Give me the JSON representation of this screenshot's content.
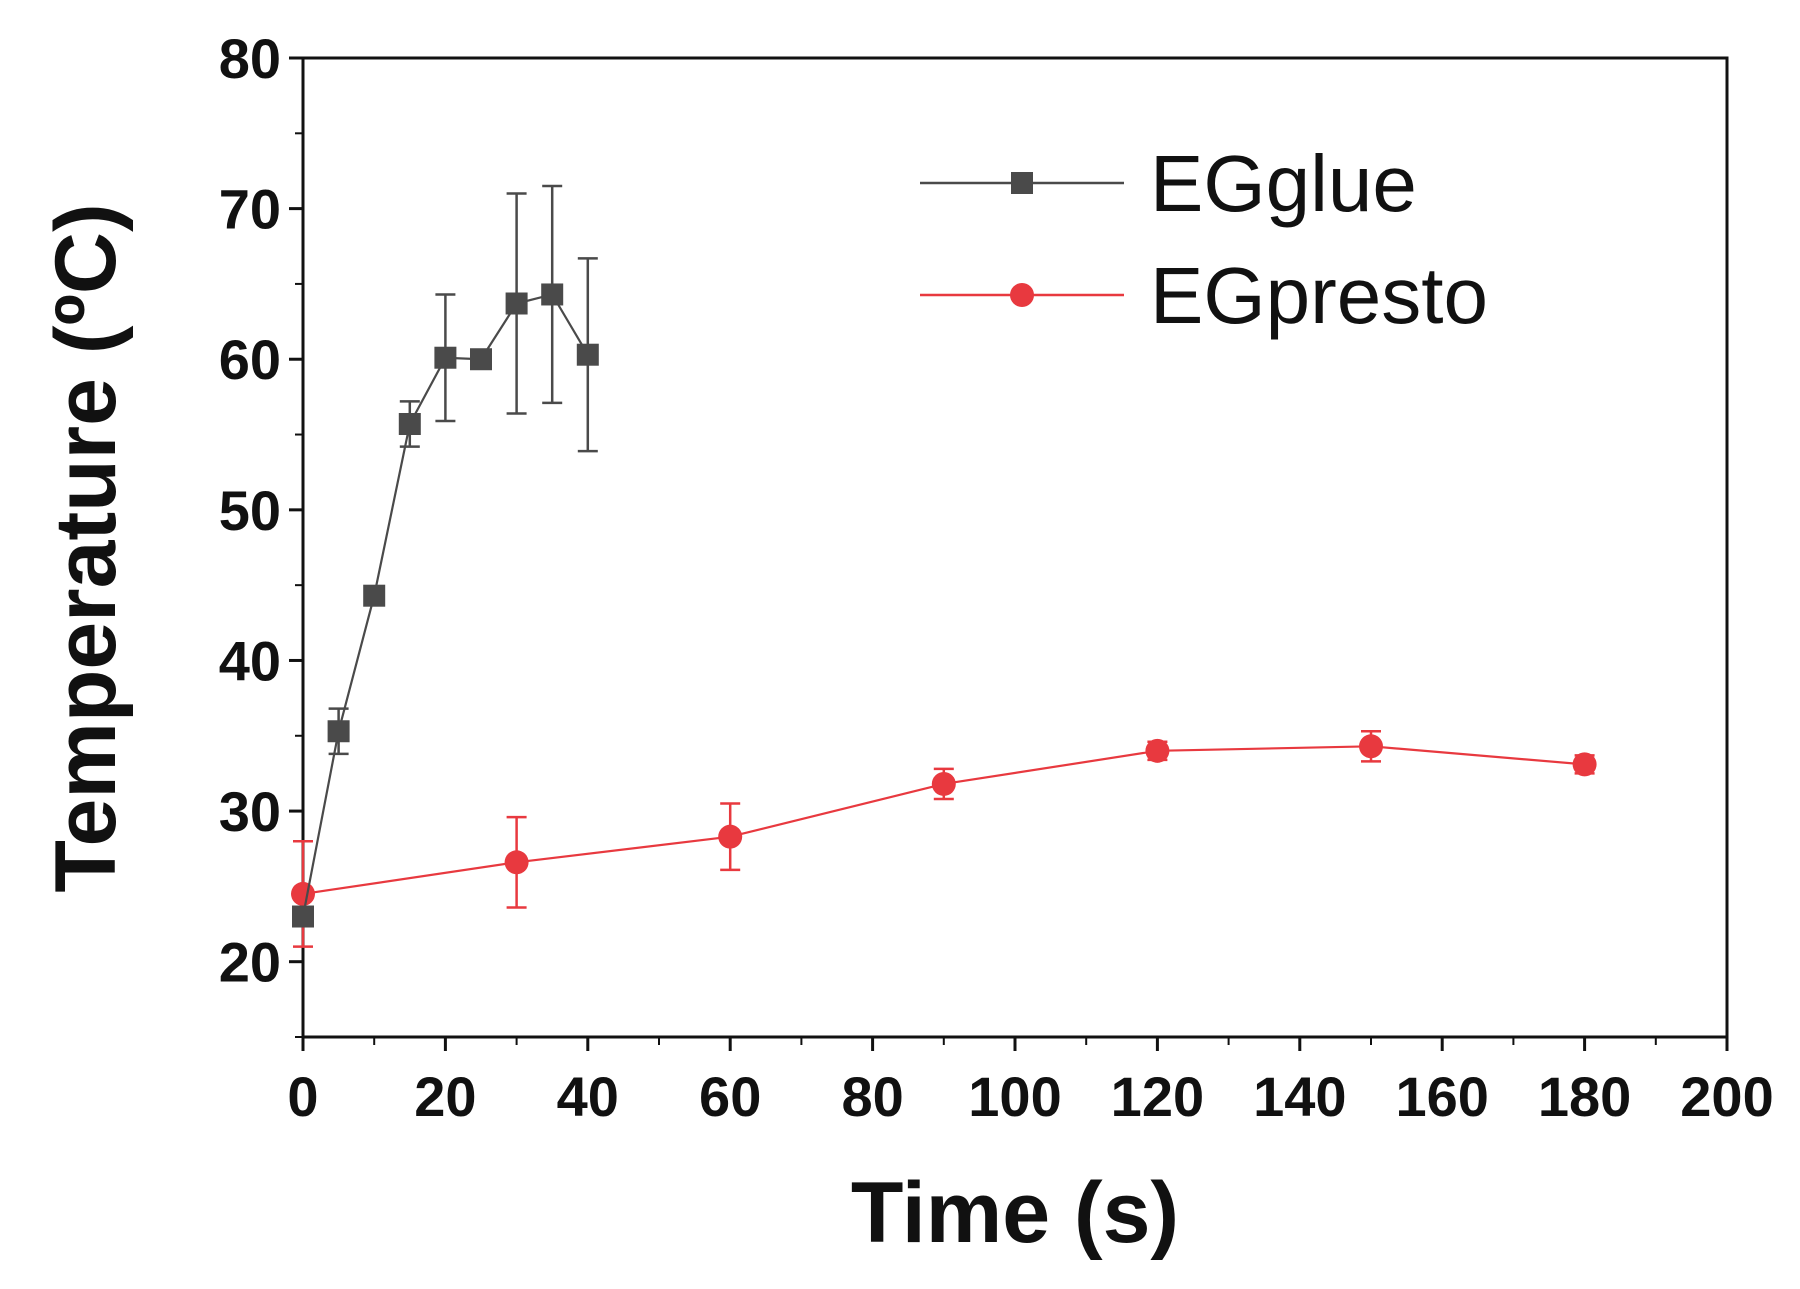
{
  "chart_data": {
    "type": "line",
    "xlabel": "Time (s)",
    "ylabel": "Temperature (ºC)",
    "xlim": [
      0,
      200
    ],
    "ylim": [
      15,
      80
    ],
    "xticks": [
      0,
      20,
      40,
      60,
      80,
      100,
      120,
      140,
      160,
      180,
      200
    ],
    "yticks": [
      20,
      30,
      40,
      50,
      60,
      70,
      80
    ],
    "grid": false,
    "legend_position": "top-right",
    "series": [
      {
        "name": "EGglue",
        "color": "#4a4a4a",
        "marker": "square",
        "x": [
          0,
          5,
          10,
          15,
          20,
          25,
          30,
          35,
          40
        ],
        "y": [
          23.0,
          35.3,
          44.3,
          55.7,
          60.1,
          60.0,
          63.7,
          64.3,
          60.3
        ],
        "err": [
          0.0,
          1.5,
          0.5,
          1.5,
          4.2,
          0.0,
          7.3,
          7.2,
          6.4
        ]
      },
      {
        "name": "EGpresto",
        "color": "#e8393f",
        "marker": "circle",
        "x": [
          0,
          30,
          60,
          90,
          120,
          150,
          180
        ],
        "y": [
          24.5,
          26.6,
          28.3,
          31.8,
          34.0,
          34.3,
          33.1
        ],
        "err": [
          3.5,
          3.0,
          2.2,
          1.0,
          0.6,
          1.0,
          0.6
        ]
      }
    ]
  }
}
